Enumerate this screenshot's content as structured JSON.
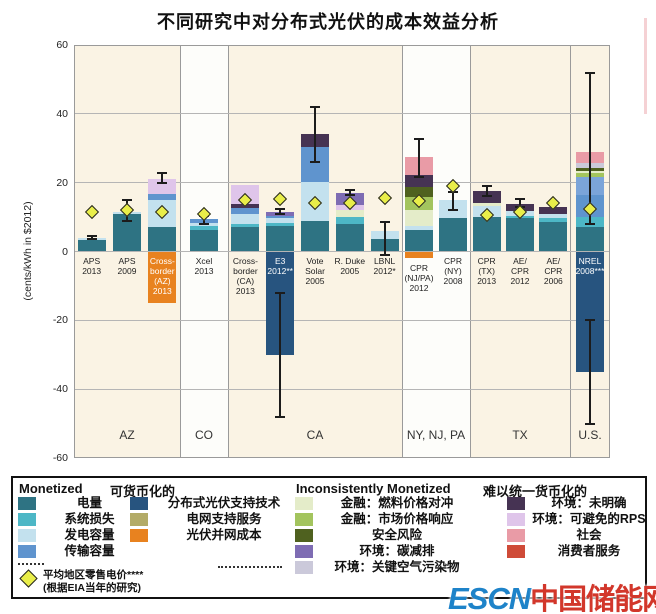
{
  "title": "不同研究中对分布式光伏的成本效益分析",
  "watermark": {
    "latin": "ESCN",
    "cjk": "中国储能网"
  },
  "chart_data": {
    "type": "bar",
    "title": "不同研究中对分布式光伏的成本效益分析",
    "ylabel": "(cents/kWh in $2012)",
    "ylim": [
      -60,
      60
    ],
    "yticks": [
      60,
      40,
      20,
      0,
      -20,
      -40,
      -60
    ],
    "grid": true,
    "palette": {
      "energy": "#2e7383",
      "losses": "#4db7c6",
      "gencap": "#c3e1ee",
      "transcap": "#5f94ce",
      "transcap_light": "#7ba4d9",
      "pvtech": "#27547f",
      "gridsvc": "#b3ab67",
      "interconn": "#e8821f",
      "fuelhedge": "#e4ecc9",
      "mktprice": "#a3c45e",
      "security": "#4f611f",
      "carbon": "#7e6cb3",
      "airpoll": "#cbc9da",
      "envunspec": "#463353",
      "rps": "#dfc5ea",
      "social": "#e99ba6",
      "consumer": "#cf4b38"
    },
    "diamond_color": "#e9ee49",
    "panel_colors": {
      "cream": "#faf3e4",
      "white": "#fdfdfa"
    },
    "groups": [
      {
        "label": "AZ",
        "bg": "cream",
        "bars": [
          {
            "label_lines": [
              "APS",
              "2013"
            ],
            "segments": [
              [
                0,
                3.2,
                "energy"
              ],
              [
                3.2,
                3.9,
                "gencap"
              ]
            ],
            "errors": [
              [
                3.6,
                4.4
              ]
            ],
            "diamond": 11.5,
            "label_white": false
          },
          {
            "label_lines": [
              "APS",
              "2009"
            ],
            "segments": [
              [
                0,
                10.8,
                "energy"
              ],
              [
                10.8,
                11.5,
                "gencap"
              ]
            ],
            "errors": [
              [
                9,
                15
              ]
            ],
            "diamond": 12.2,
            "label_white": false
          },
          {
            "label_lines": [
              "Cross-",
              "border",
              "(AZ)",
              "2013"
            ],
            "segments": [
              [
                -15,
                0,
                "interconn"
              ],
              [
                0,
                7,
                "energy"
              ],
              [
                7,
                15,
                "gencap"
              ],
              [
                15,
                16.6,
                "transcap"
              ],
              [
                16.6,
                21,
                "rps"
              ]
            ],
            "errors": [
              [
                20,
                22.8
              ]
            ],
            "diamond": 11.5,
            "label_white": true
          }
        ]
      },
      {
        "label": "CO",
        "bg": "white",
        "bars": [
          {
            "label_lines": [
              "Xcel",
              "2013"
            ],
            "segments": [
              [
                0,
                6.3,
                "energy"
              ],
              [
                6.3,
                7.3,
                "losses"
              ],
              [
                7.3,
                8.4,
                "gencap"
              ],
              [
                8.4,
                9.3,
                "transcap"
              ]
            ],
            "errors": [
              [
                8,
                10.2
              ]
            ],
            "diamond": 11,
            "label_white": false
          }
        ]
      },
      {
        "label": "CA",
        "bg": "cream",
        "bars": [
          {
            "label_lines": [
              "Cross-",
              "border",
              "(CA)",
              "2013"
            ],
            "segments": [
              [
                0,
                7,
                "energy"
              ],
              [
                7,
                8,
                "losses"
              ],
              [
                8,
                11,
                "gencap"
              ],
              [
                11,
                12.7,
                "transcap"
              ],
              [
                12.7,
                13.7,
                "envunspec"
              ],
              [
                13.7,
                19.3,
                "rps"
              ]
            ],
            "errors": [],
            "diamond": 15,
            "label_white": false
          },
          {
            "label_lines": [
              "E3",
              "2012**"
            ],
            "segments": [
              [
                -30,
                0,
                "pvtech"
              ],
              [
                0,
                7.5,
                "energy"
              ],
              [
                7.5,
                8.3,
                "losses"
              ],
              [
                8.3,
                9.6,
                "gencap"
              ],
              [
                9.6,
                10.4,
                "transcap"
              ],
              [
                10.4,
                11.5,
                "carbon"
              ]
            ],
            "errors": [
              [
                -48,
                -12
              ],
              [
                10.8,
                12.4
              ]
            ],
            "diamond": 15.2,
            "label_white": true
          },
          {
            "label_lines": [
              "Vote",
              "Solar",
              "2005"
            ],
            "segments": [
              [
                0,
                9,
                "energy"
              ],
              [
                9,
                20.3,
                "gencap"
              ],
              [
                20.3,
                30.4,
                "transcap"
              ],
              [
                30.4,
                34,
                "envunspec"
              ]
            ],
            "errors": [
              [
                26,
                42
              ]
            ],
            "diamond": 14,
            "label_white": false
          },
          {
            "label_lines": [
              "R. Duke",
              "2005"
            ],
            "segments": [
              [
                0,
                8,
                "energy"
              ],
              [
                8,
                10,
                "losses"
              ],
              [
                10,
                12.2,
                "fuelhedge"
              ],
              [
                12.2,
                13.4,
                "rps"
              ],
              [
                13.4,
                17,
                "carbon"
              ]
            ],
            "errors": [
              [
                16.4,
                17.8
              ]
            ],
            "diamond": 14,
            "label_white": false
          },
          {
            "label_lines": [
              "LBNL",
              "2012*"
            ],
            "segments": [
              [
                0,
                3.6,
                "energy"
              ],
              [
                3.6,
                5.9,
                "gencap"
              ]
            ],
            "errors": [
              [
                -1,
                8.5
              ]
            ],
            "diamond": 15.5,
            "label_white": false
          }
        ]
      },
      {
        "label": "NY, NJ, PA",
        "bg": "white",
        "bars": [
          {
            "label_lines": [
              "CPR",
              "(NJ/PA)",
              "2012"
            ],
            "segments": [
              [
                -1.8,
                0,
                "interconn"
              ],
              [
                0,
                6.2,
                "energy"
              ],
              [
                6.2,
                7.4,
                "gencap"
              ],
              [
                7.4,
                12,
                "fuelhedge"
              ],
              [
                12,
                15.7,
                "mktprice"
              ],
              [
                15.7,
                18.6,
                "security"
              ],
              [
                18.6,
                22.3,
                "envunspec"
              ],
              [
                22.3,
                27.5,
                "social"
              ]
            ],
            "errors": [
              [
                21.7,
                32.7
              ]
            ],
            "diamond": 14.6,
            "label_white": false,
            "label_gap": 7
          },
          {
            "label_lines": [
              "CPR",
              "(NY)",
              "2008"
            ],
            "segments": [
              [
                0,
                9.7,
                "energy"
              ],
              [
                9.7,
                14.9,
                "gencap"
              ]
            ],
            "errors": [
              [
                12.2,
                17.2
              ]
            ],
            "diamond": 19,
            "label_white": false
          }
        ]
      },
      {
        "label": "TX",
        "bg": "cream",
        "bars": [
          {
            "label_lines": [
              "CPR",
              "(TX)",
              "2013"
            ],
            "segments": [
              [
                0,
                10,
                "energy"
              ],
              [
                10,
                13.3,
                "gencap"
              ],
              [
                13.3,
                14.2,
                "fuelhedge"
              ],
              [
                14.2,
                17.7,
                "envunspec"
              ]
            ],
            "errors": [
              [
                16.2,
                19
              ]
            ],
            "diamond": 10.5,
            "label_white": false
          },
          {
            "label_lines": [
              "AE/",
              "CPR",
              "2012"
            ],
            "segments": [
              [
                0,
                9.6,
                "energy"
              ],
              [
                9.6,
                10.4,
                "losses"
              ],
              [
                10.4,
                11.9,
                "gencap"
              ],
              [
                11.9,
                13.9,
                "envunspec"
              ]
            ],
            "errors": [
              [
                13,
                15.2
              ]
            ],
            "diamond": 11.5,
            "label_white": false
          },
          {
            "label_lines": [
              "AE/",
              "CPR",
              "2006"
            ],
            "segments": [
              [
                0,
                8.5,
                "energy"
              ],
              [
                8.5,
                9.6,
                "losses"
              ],
              [
                9.6,
                11,
                "gencap"
              ],
              [
                11,
                12.8,
                "envunspec"
              ]
            ],
            "errors": [],
            "diamond": 14,
            "label_white": false
          }
        ]
      },
      {
        "label": "U.S.",
        "bg": "cream",
        "bars": [
          {
            "label_lines": [
              "NREL",
              "2008***"
            ],
            "segments": [
              [
                -35,
                0,
                "pvtech"
              ],
              [
                0,
                7.2,
                "energy"
              ],
              [
                7.2,
                10.1,
                "losses"
              ],
              [
                10.1,
                16.4,
                "transcap"
              ],
              [
                16.4,
                21.7,
                "transcap_light"
              ],
              [
                21.7,
                22.7,
                "mktprice"
              ],
              [
                22.7,
                23.4,
                "fuelhedge"
              ],
              [
                23.4,
                24.4,
                "security"
              ],
              [
                24.4,
                25.6,
                "airpoll"
              ],
              [
                25.6,
                28.8,
                "social"
              ]
            ],
            "errors": [
              [
                8,
                52
              ],
              [
                -50,
                -20
              ]
            ],
            "diamond": 12.4,
            "label_white": true
          }
        ]
      }
    ],
    "legend": {
      "monetized_title_en": "Monetized",
      "monetized_title_zh": "可货币化的",
      "inconsistent_title_en": "Inconsistently Monetized",
      "inconsistent_title_zh": "难以统一货币化的",
      "diamond_note_line1": "平均地区零售电价****",
      "diamond_note_line2": "(根据EIA当年的研究)",
      "columns": [
        {
          "items": [
            {
              "key": "energy",
              "label": "电量"
            },
            {
              "key": "losses",
              "label": "系统损失"
            },
            {
              "key": "gencap",
              "label": "发电容量"
            },
            {
              "key": "transcap",
              "label": "传输容量"
            }
          ]
        },
        {
          "items": [
            {
              "key": "pvtech",
              "label": "分布式光伏支持技术"
            },
            {
              "key": "gridsvc",
              "label": "电网支持服务"
            },
            {
              "key": "interconn",
              "label": "光伏并网成本"
            }
          ]
        },
        {
          "items": [
            {
              "key": "fuelhedge",
              "label": "金融：燃料价格对冲"
            },
            {
              "key": "mktprice",
              "label": "金融：市场价格响应"
            },
            {
              "key": "security",
              "label": "安全风险"
            },
            {
              "key": "carbon",
              "label": "环境：碳减排"
            },
            {
              "key": "airpoll",
              "label": "环境：关键空气污染物"
            }
          ]
        },
        {
          "items": [
            {
              "key": "envunspec",
              "label": "环境：未明确"
            },
            {
              "key": "rps",
              "label": "环境：可避免的RPS"
            },
            {
              "key": "social",
              "label": "社会"
            },
            {
              "key": "consumer",
              "label": "消费者服务"
            }
          ]
        }
      ]
    }
  }
}
